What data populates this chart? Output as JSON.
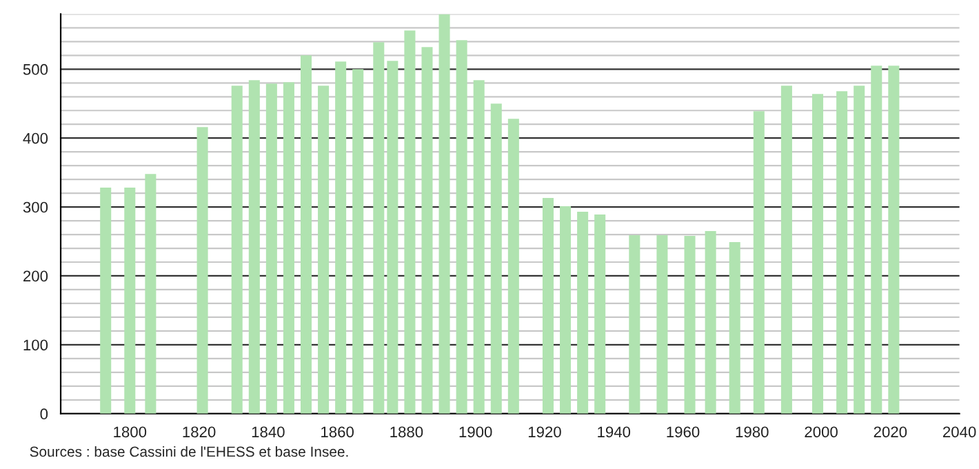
{
  "chart_data": {
    "type": "bar",
    "x": [
      1793,
      1800,
      1806,
      1821,
      1831,
      1836,
      1841,
      1846,
      1851,
      1856,
      1861,
      1866,
      1872,
      1876,
      1881,
      1886,
      1891,
      1896,
      1901,
      1906,
      1911,
      1921,
      1926,
      1931,
      1936,
      1946,
      1954,
      1962,
      1968,
      1975,
      1982,
      1990,
      1999,
      2006,
      2011,
      2016,
      2021
    ],
    "values": [
      328,
      328,
      348,
      416,
      476,
      484,
      479,
      481,
      520,
      476,
      511,
      500,
      539,
      512,
      556,
      532,
      580,
      542,
      484,
      450,
      428,
      313,
      301,
      293,
      289,
      259,
      259,
      258,
      265,
      249,
      439,
      476,
      464,
      468,
      476,
      505,
      505
    ],
    "color": "#b0e3b0",
    "xlim": [
      1780,
      2040
    ],
    "xticks": [
      1800,
      1820,
      1840,
      1860,
      1880,
      1900,
      1920,
      1940,
      1960,
      1980,
      2000,
      2020,
      2040
    ],
    "ylim": [
      0,
      580
    ],
    "yticks": [
      0,
      100,
      200,
      300,
      400,
      500
    ],
    "grid": "y",
    "legend": false,
    "annotations": [
      "Sources : base Cassini de l'EHESS et base Insee."
    ]
  }
}
